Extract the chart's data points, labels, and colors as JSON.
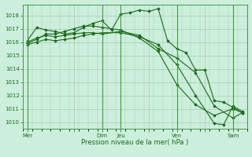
{
  "title": "",
  "xlabel": "Pression niveau de la mer( hPa )",
  "ylabel": "",
  "background_color": "#cceedd",
  "grid_color": "#aaccaa",
  "line_color": "#1a6b1a",
  "marker_color": "#1a6b1a",
  "ylim": [
    1009.5,
    1018.8
  ],
  "yticks": [
    1010,
    1011,
    1012,
    1013,
    1014,
    1015,
    1016,
    1017,
    1018
  ],
  "day_labels": [
    "Mer",
    "",
    "Dim",
    "Jeu",
    "",
    "Ven",
    "",
    "Sam"
  ],
  "day_positions": [
    0,
    5,
    8,
    10,
    13,
    16,
    19,
    22
  ],
  "vlines": [
    0,
    8,
    10,
    16,
    22
  ],
  "series1": {
    "x": [
      0,
      1,
      2,
      3,
      4,
      5,
      6,
      7,
      8,
      9,
      10,
      11,
      12,
      13,
      14,
      15,
      16,
      17,
      18,
      19,
      20,
      21,
      22,
      23
    ],
    "y": [
      1016.1,
      1017.1,
      1016.9,
      1016.8,
      1016.6,
      1016.7,
      1017.1,
      1017.4,
      1017.6,
      1016.9,
      1018.1,
      1018.2,
      1018.4,
      1018.3,
      1018.5,
      1016.1,
      1015.5,
      1015.2,
      1013.9,
      1013.9,
      1011.6,
      1011.5,
      1011.1,
      1010.7
    ]
  },
  "series2": {
    "x": [
      0,
      1,
      2,
      3,
      4,
      5,
      6,
      7,
      8,
      10,
      12,
      14,
      16,
      18,
      20,
      22,
      23
    ],
    "y": [
      1016.0,
      1016.3,
      1016.5,
      1016.4,
      1016.5,
      1016.6,
      1016.7,
      1016.7,
      1016.6,
      1016.8,
      1016.5,
      1015.5,
      1014.8,
      1013.7,
      1011.2,
      1010.3,
      1010.7
    ]
  },
  "series3": {
    "x": [
      0,
      1,
      2,
      3,
      4,
      5,
      6,
      7,
      8,
      10,
      12,
      14,
      16,
      18,
      20,
      21,
      22,
      23
    ],
    "y": [
      1015.8,
      1016.0,
      1016.2,
      1016.1,
      1016.2,
      1016.3,
      1016.5,
      1016.6,
      1016.7,
      1016.7,
      1016.4,
      1015.8,
      1014.3,
      1012.0,
      1009.9,
      1009.8,
      1011.2,
      1010.8
    ]
  },
  "series4": {
    "x": [
      0,
      1,
      2,
      3,
      4,
      5,
      6,
      7,
      8,
      10,
      12,
      14,
      16,
      18,
      20,
      22,
      23
    ],
    "y": [
      1015.9,
      1016.2,
      1016.6,
      1016.6,
      1016.8,
      1017.0,
      1017.2,
      1017.2,
      1017.1,
      1016.9,
      1016.3,
      1015.3,
      1012.8,
      1011.3,
      1010.5,
      1011.0,
      1010.7
    ]
  }
}
